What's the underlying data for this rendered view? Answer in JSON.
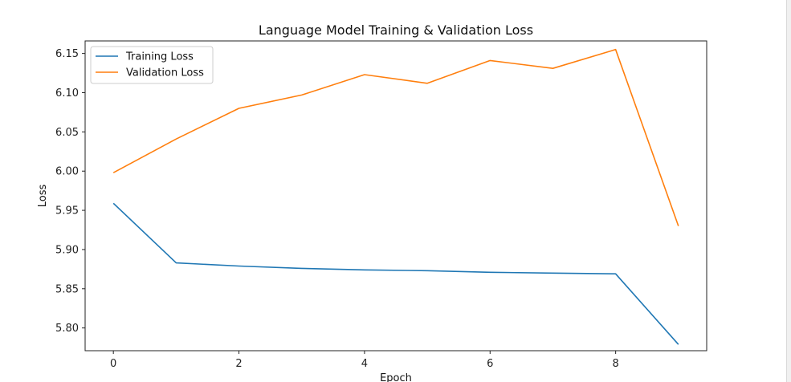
{
  "chart_data": {
    "type": "line",
    "title": "Language Model Training & Validation Loss",
    "xlabel": "Epoch",
    "ylabel": "Loss",
    "x": [
      0,
      1,
      2,
      3,
      4,
      5,
      6,
      7,
      8,
      9
    ],
    "xticks": [
      "0",
      "2",
      "4",
      "6",
      "8"
    ],
    "yticks": [
      "5.80",
      "5.85",
      "5.90",
      "5.95",
      "6.00",
      "6.05",
      "6.10",
      "6.15"
    ],
    "xlim": [
      -0.45,
      9.45
    ],
    "ylim": [
      5.771,
      6.166
    ],
    "grid": false,
    "legend_position": "top-left",
    "series": [
      {
        "name": "Training Loss",
        "color": "#1f77b4",
        "values": [
          5.959,
          5.883,
          5.879,
          5.876,
          5.874,
          5.873,
          5.871,
          5.87,
          5.869,
          5.779
        ]
      },
      {
        "name": "Validation Loss",
        "color": "#ff7f0e",
        "values": [
          5.998,
          6.041,
          6.08,
          6.097,
          6.123,
          6.112,
          6.141,
          6.131,
          6.155,
          5.93
        ]
      }
    ]
  }
}
